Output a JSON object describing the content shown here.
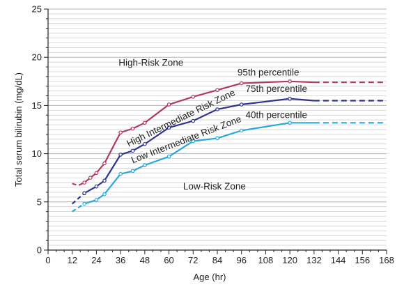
{
  "chart_data": {
    "type": "line",
    "xlabel": "Age (hr)",
    "ylabel": "Total serum bilirubin (mg/dL)",
    "xlim": [
      0,
      168
    ],
    "ylim": [
      0,
      25
    ],
    "x_ticks": [
      "0",
      "12",
      "24",
      "36",
      "48",
      "60",
      "72",
      "84",
      "96",
      "108",
      "120",
      "132",
      "144",
      "156",
      "168"
    ],
    "y_ticks": [
      "0",
      "5",
      "10",
      "15",
      "20",
      "25"
    ],
    "grid": "horizontal",
    "colors": {
      "p95": "#b03a5b",
      "p75": "#2e318f",
      "p40": "#2aa6db",
      "grid": "#c8c8c8",
      "axis": "#222222"
    },
    "series": [
      {
        "name": "95th percentile",
        "color": "#b03a5b",
        "dashed_start": [
          [
            12,
            6.9
          ],
          [
            15,
            6.7
          ],
          [
            18,
            7.0
          ]
        ],
        "x": [
          18,
          21,
          24,
          28,
          36,
          42,
          48,
          60,
          72,
          84,
          96,
          120,
          132
        ],
        "y": [
          7.0,
          7.5,
          8.0,
          9.0,
          12.2,
          12.6,
          13.2,
          15.1,
          15.9,
          16.6,
          17.3,
          17.5,
          17.4
        ],
        "dashed_end": [
          [
            132,
            17.4
          ],
          [
            168,
            17.4
          ]
        ]
      },
      {
        "name": "75th percentile",
        "color": "#2e318f",
        "dashed_start": [
          [
            12,
            4.8
          ],
          [
            18,
            5.9
          ]
        ],
        "x": [
          18,
          24,
          28,
          36,
          42,
          48,
          60,
          72,
          84,
          96,
          120,
          132
        ],
        "y": [
          5.9,
          6.6,
          7.2,
          9.9,
          10.3,
          11.0,
          12.7,
          13.4,
          14.6,
          15.1,
          15.7,
          15.5
        ],
        "dashed_end": [
          [
            132,
            15.5
          ],
          [
            168,
            15.5
          ]
        ]
      },
      {
        "name": "40th percentile",
        "color": "#2aa6db",
        "dashed_start": [
          [
            12,
            4.0
          ],
          [
            18,
            4.8
          ]
        ],
        "x": [
          18,
          24,
          28,
          36,
          42,
          48,
          60,
          72,
          84,
          96,
          120,
          132
        ],
        "y": [
          4.8,
          5.2,
          5.8,
          7.9,
          8.2,
          8.8,
          9.7,
          11.3,
          11.6,
          12.4,
          13.2,
          13.2
        ],
        "dashed_end": [
          [
            132,
            13.2
          ],
          [
            168,
            13.2
          ]
        ]
      }
    ],
    "annotations": [
      {
        "id": "high-risk",
        "text": "High-Risk Zone",
        "x": 35,
        "y": 19.1,
        "angle": 0
      },
      {
        "id": "p95",
        "text": "95th percentile",
        "x": 94,
        "y": 18.1,
        "angle": 0
      },
      {
        "id": "p75",
        "text": "75th percentile",
        "x": 98,
        "y": 16.4,
        "angle": 0
      },
      {
        "id": "high-int",
        "text": "High Intermediate Risk Zone",
        "x": 40,
        "y": 10.7,
        "angle": -26
      },
      {
        "id": "low-int",
        "text": "Low Intermediate Risk Zone",
        "x": 42,
        "y": 9.0,
        "angle": -21
      },
      {
        "id": "p40",
        "text": "40th percentile",
        "x": 98,
        "y": 13.7,
        "angle": 0
      },
      {
        "id": "low-risk",
        "text": "Low-Risk Zone",
        "x": 67,
        "y": 6.3,
        "angle": 0
      }
    ]
  }
}
